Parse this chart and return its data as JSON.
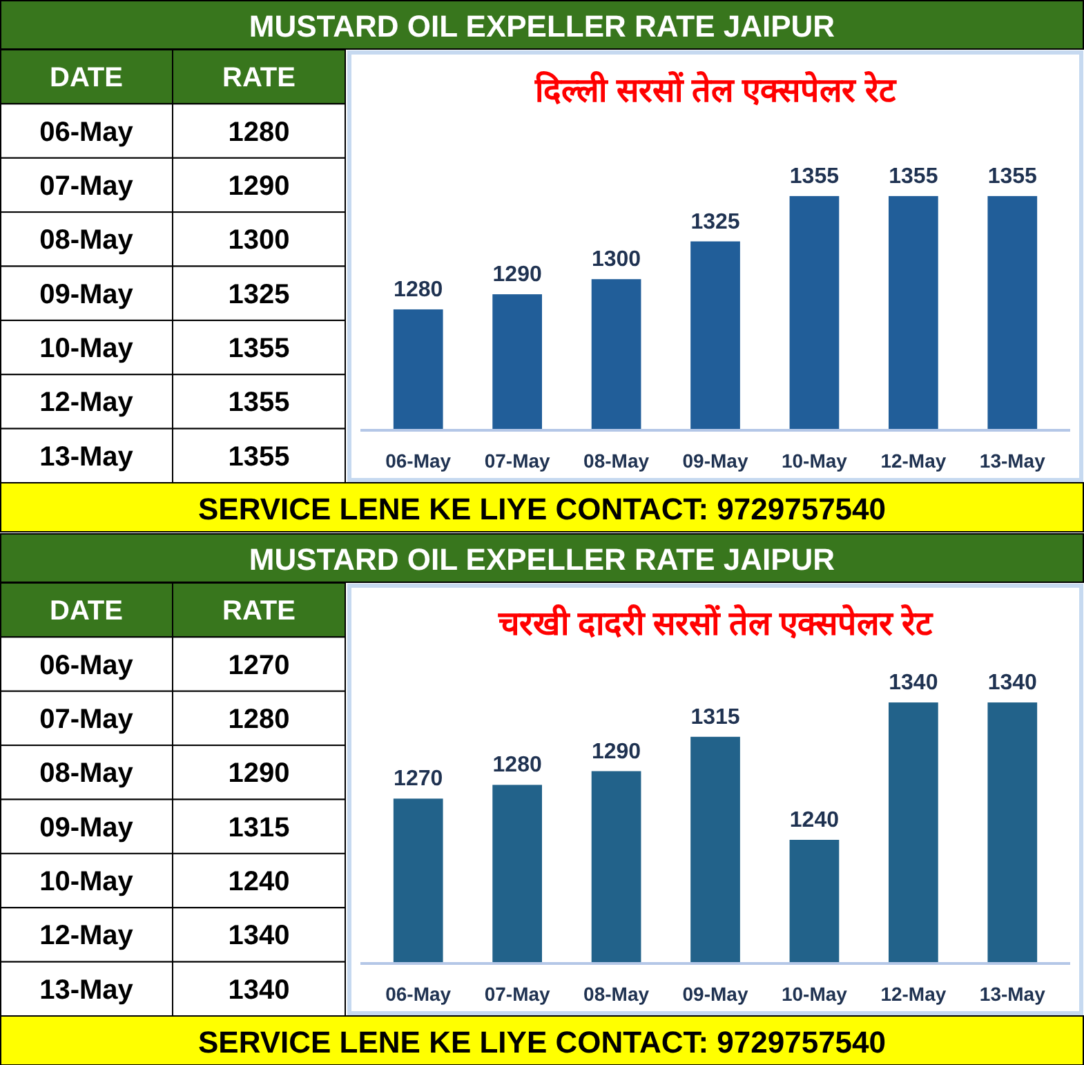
{
  "chart_data": [
    {
      "type": "other",
      "xlabel": "DATE",
      "ylabel": "RATE",
      "categories": [
        "06-May",
        "07-May",
        "08-May",
        "09-May",
        "10-May",
        "12-May",
        "13-May"
      ],
      "values": [
        1280,
        1290,
        1300,
        1325,
        1355,
        1355,
        1355
      ],
      "data_labels": true
    },
    {
      "type": "bar",
      "title": "दिल्ली सरसों तेल एक्सपेलर रेट",
      "subtitle": "MUSTARD OIL EXPELLER RATE JAIPUR",
      "categories": [
        "06-May",
        "07-May",
        "08-May",
        "09-May",
        "10-May",
        "12-May",
        "13-May"
      ],
      "values": [
        1280,
        1290,
        1300,
        1325,
        1355,
        1355,
        1355
      ],
      "color": "#215e99",
      "ylim": [
        1200,
        1450
      ],
      "data_labels": true,
      "annotations": [
        "SERVICE LENE KE LIYE CONTACT: 9729757540"
      ]
    },
    {
      "type": "other",
      "xlabel": "DATE",
      "ylabel": "RATE",
      "categories": [
        "06-May",
        "07-May",
        "08-May",
        "09-May",
        "10-May",
        "12-May",
        "13-May"
      ],
      "values": [
        1270,
        1280,
        1290,
        1315,
        1240,
        1340,
        1340
      ],
      "data_labels": true
    },
    {
      "type": "bar",
      "title": "चरखी दादरी सरसों तेल एक्सपेलर रेट",
      "subtitle": "MUSTARD OIL EXPELLER RATE JAIPUR",
      "categories": [
        "06-May",
        "07-May",
        "08-May",
        "09-May",
        "10-May",
        "12-May",
        "13-May"
      ],
      "values": [
        1270,
        1280,
        1290,
        1315,
        1240,
        1340,
        1340
      ],
      "color": "#22628a",
      "ylim": [
        1150,
        1425
      ],
      "data_labels": true,
      "annotations": [
        "SERVICE LENE KE LIYE CONTACT: 9729757540"
      ]
    }
  ]
}
